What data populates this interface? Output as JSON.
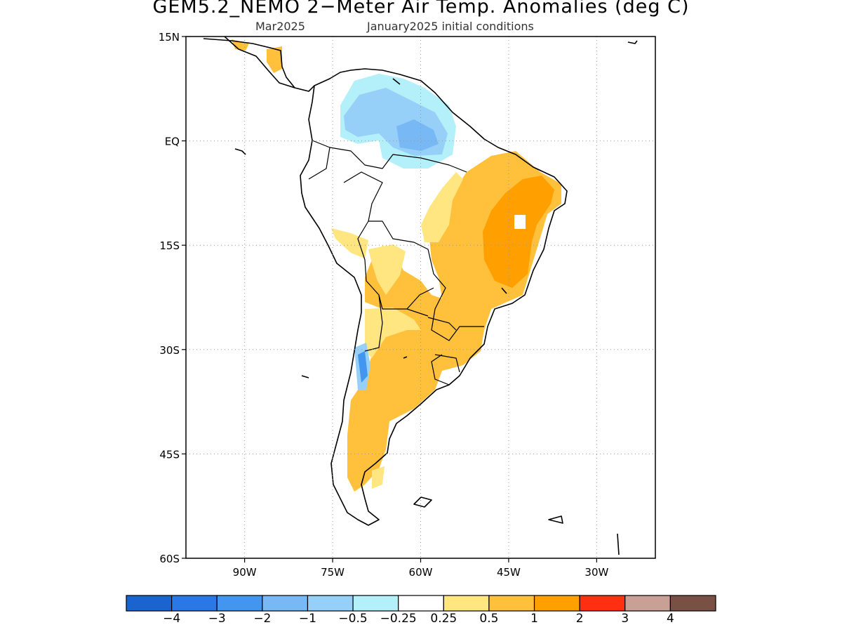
{
  "title": "GEM5.2_NEMO 2−Meter Air Temp. Anomalies (deg C)",
  "subtitle_left": "Mar2025",
  "subtitle_right": "January2025 initial conditions",
  "map": {
    "lon_range": [
      -100,
      -20
    ],
    "lat_range": [
      -60,
      15
    ],
    "lat_ticks": [
      {
        "lat": 15,
        "label": "15N"
      },
      {
        "lat": 0,
        "label": "EQ"
      },
      {
        "lat": -15,
        "label": "15S"
      },
      {
        "lat": -30,
        "label": "30S"
      },
      {
        "lat": -45,
        "label": "45S"
      },
      {
        "lat": -60,
        "label": "60S"
      }
    ],
    "lon_ticks": [
      {
        "lon": -90,
        "label": "90W"
      },
      {
        "lon": -75,
        "label": "75W"
      },
      {
        "lon": -60,
        "label": "60W"
      },
      {
        "lon": -45,
        "label": "45W"
      },
      {
        "lon": -30,
        "label": "30W"
      }
    ],
    "grid": "dotted"
  },
  "colorbar": {
    "colors": [
      "#1a64d0",
      "#2a78e6",
      "#4296f0",
      "#78b8f5",
      "#96d0f8",
      "#b4f0fa",
      "#ffffff",
      "#ffe680",
      "#ffc03c",
      "#ffa000",
      "#ff3010",
      "#c8a096",
      "#785044"
    ],
    "labels": [
      "−4",
      "−3",
      "−2",
      "−1",
      "−0.5",
      "−0.25",
      "0.25",
      "0.5",
      "1",
      "2",
      "3",
      "4"
    ]
  }
}
